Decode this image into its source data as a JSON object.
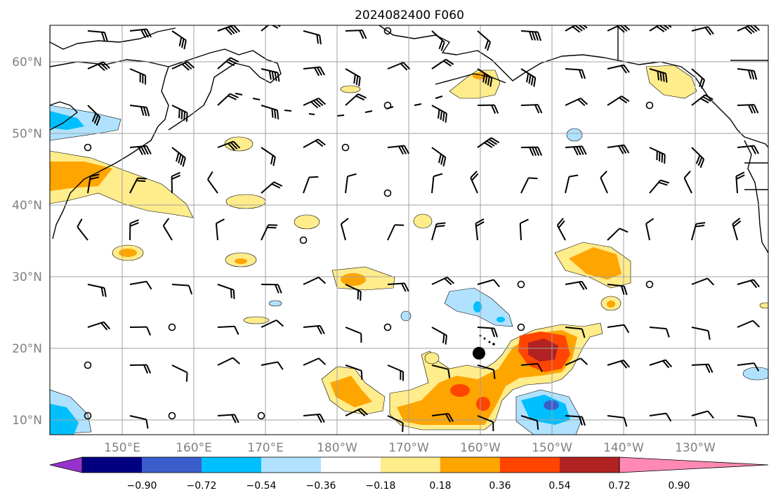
{
  "title": "2024082400 F060",
  "lat_labels": [
    "60°N",
    "50°N",
    "40°N",
    "30°N",
    "20°N",
    "10°N"
  ],
  "lon_labels": [
    "150°E",
    "160°E",
    "170°E",
    "180°W",
    "170°W",
    "160°W",
    "150°W",
    "140°W",
    "130°W"
  ],
  "colorbar": {
    "ticks": [
      "−0.90",
      "−0.72",
      "−0.54",
      "−0.36",
      "−0.18",
      "0.18",
      "0.36",
      "0.54",
      "0.72",
      "0.90"
    ],
    "colors": [
      "#9932cc",
      "#000080",
      "#3a5fcd",
      "#00bfff",
      "#b0e2ff",
      "#ffffff",
      "#ffec8b",
      "#ffa500",
      "#ff4500",
      "#b22222",
      "#ff89b4"
    ]
  },
  "colors": {
    "light_blue": "#b0e2ff",
    "cyan": "#00bfff",
    "blue": "#3a5fcd",
    "yellow": "#ffec8b",
    "orange": "#ffa500",
    "red_orange": "#ff4500",
    "dark_red": "#b22222"
  },
  "marker": "filled black circle near 19°N 161°W"
}
